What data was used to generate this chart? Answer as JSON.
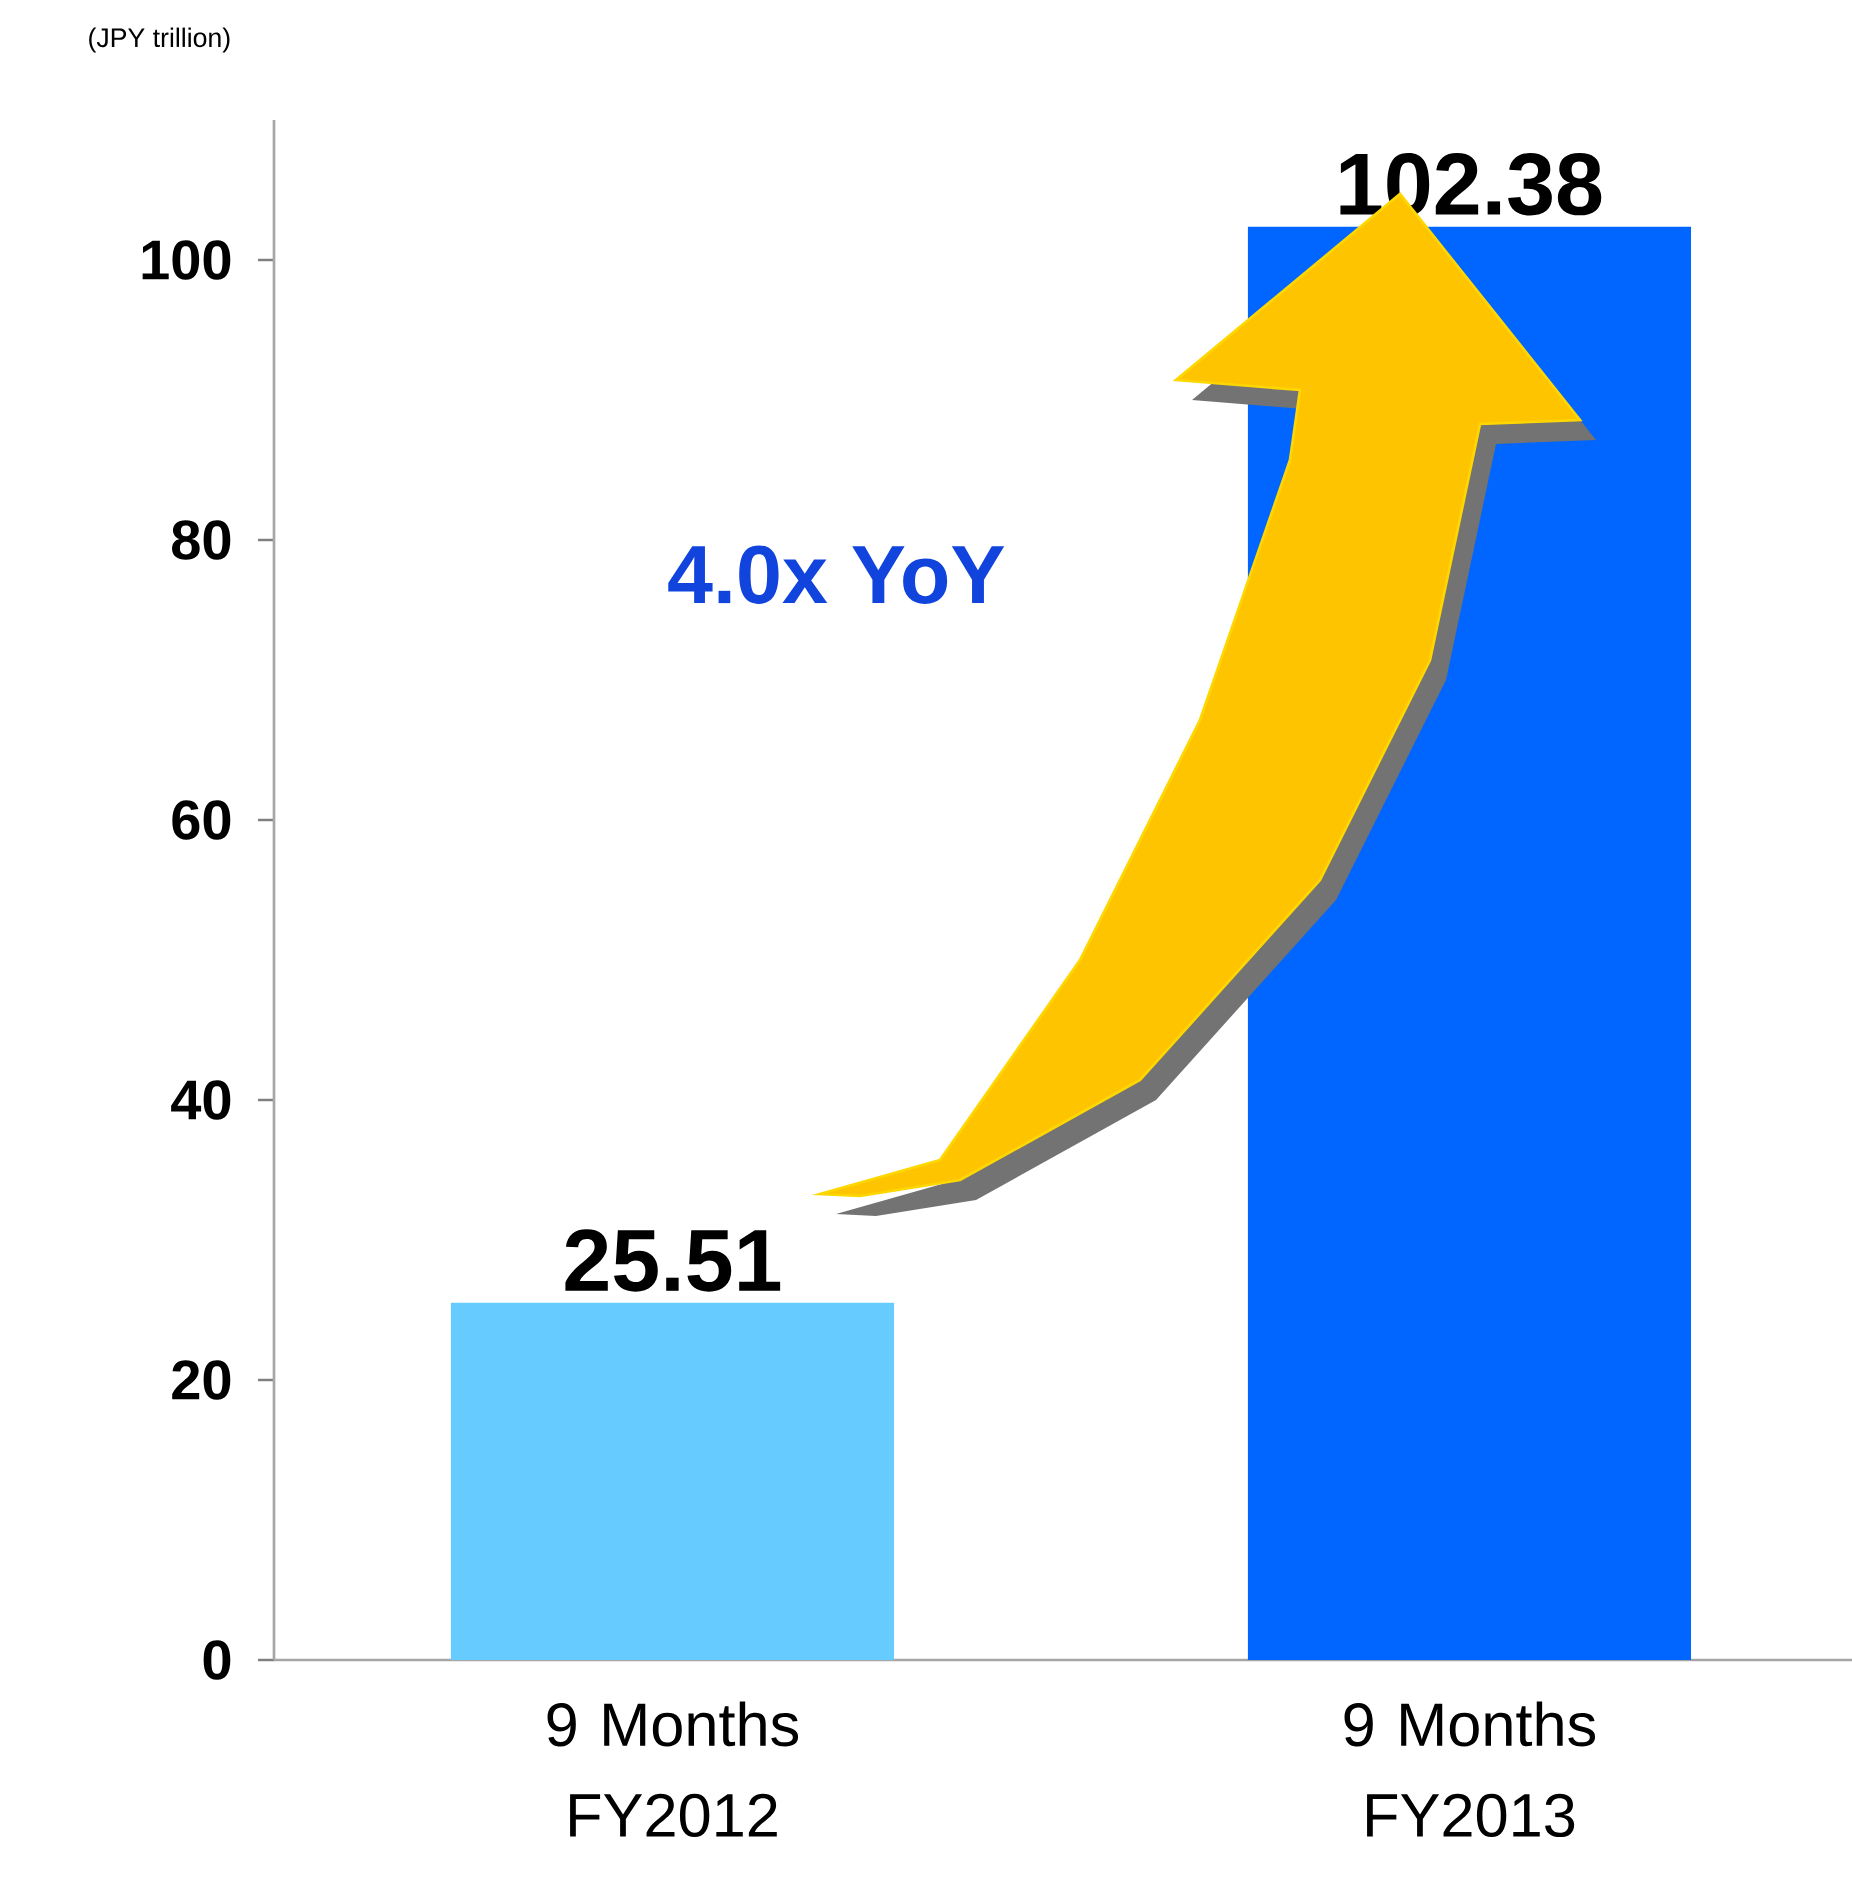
{
  "chart_data": {
    "type": "bar",
    "ylabel": "(JPY trillion)",
    "categories": [
      "9 Months FY2012",
      "9 Months FY2013"
    ],
    "values": [
      25.51,
      102.38
    ],
    "colors": [
      "#66ccff",
      "#0066ff"
    ],
    "ylim": [
      0,
      110
    ],
    "yticks": [
      0,
      20,
      40,
      60,
      80,
      100
    ],
    "data_labels": true,
    "grid": false,
    "annotations": [
      "4.0x YoY"
    ]
  }
}
